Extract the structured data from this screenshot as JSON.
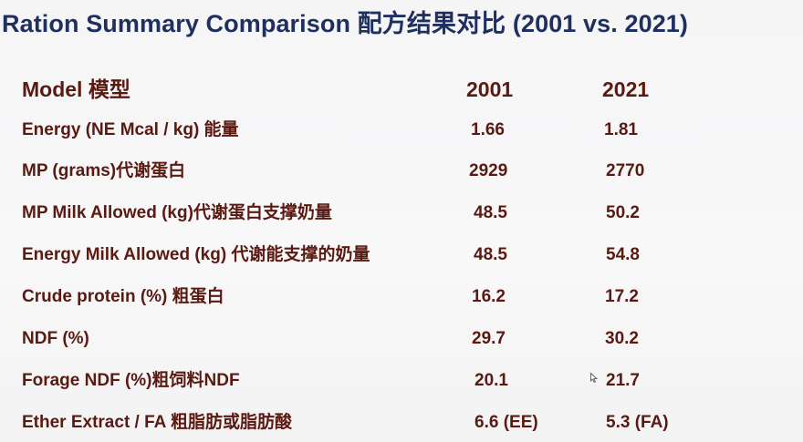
{
  "title": "Ration Summary Comparison 配方结果对比 (2001 vs. 2021)",
  "header": {
    "label": "Model 模型",
    "y2001": "2001",
    "y2021": "2021"
  },
  "rows": [
    {
      "label": "Energy (NE Mcal / kg) 能量",
      "v2001": "1.66",
      "v2021": "1.81"
    },
    {
      "label": "MP (grams)代谢蛋白",
      "v2001": "2929",
      "v2021": "2770"
    },
    {
      "label": "MP Milk Allowed (kg)代谢蛋白支撑奶量",
      "v2001": "48.5",
      "v2021": "50.2"
    },
    {
      "label": "Energy Milk Allowed (kg) 代谢能支撑的奶量",
      "v2001": "48.5",
      "v2021": "54.8"
    },
    {
      "label": "Crude protein (%)  粗蛋白",
      "v2001": "16.2",
      "v2021": "17.2"
    },
    {
      "label": "NDF (%)",
      "v2001": "29.7",
      "v2021": "30.2"
    },
    {
      "label": "Forage NDF (%)粗饲料NDF",
      "v2001": "20.1",
      "v2021": "21.7"
    },
    {
      "label": "Ether Extract / FA  粗脂肪或脂肪酸",
      "v2001": "6.6 (EE)",
      "v2021": "5.3 (FA)"
    }
  ],
  "colors": {
    "title": "#1f3060",
    "table_text": "#5a1a12",
    "background": "#f7f7f8"
  }
}
